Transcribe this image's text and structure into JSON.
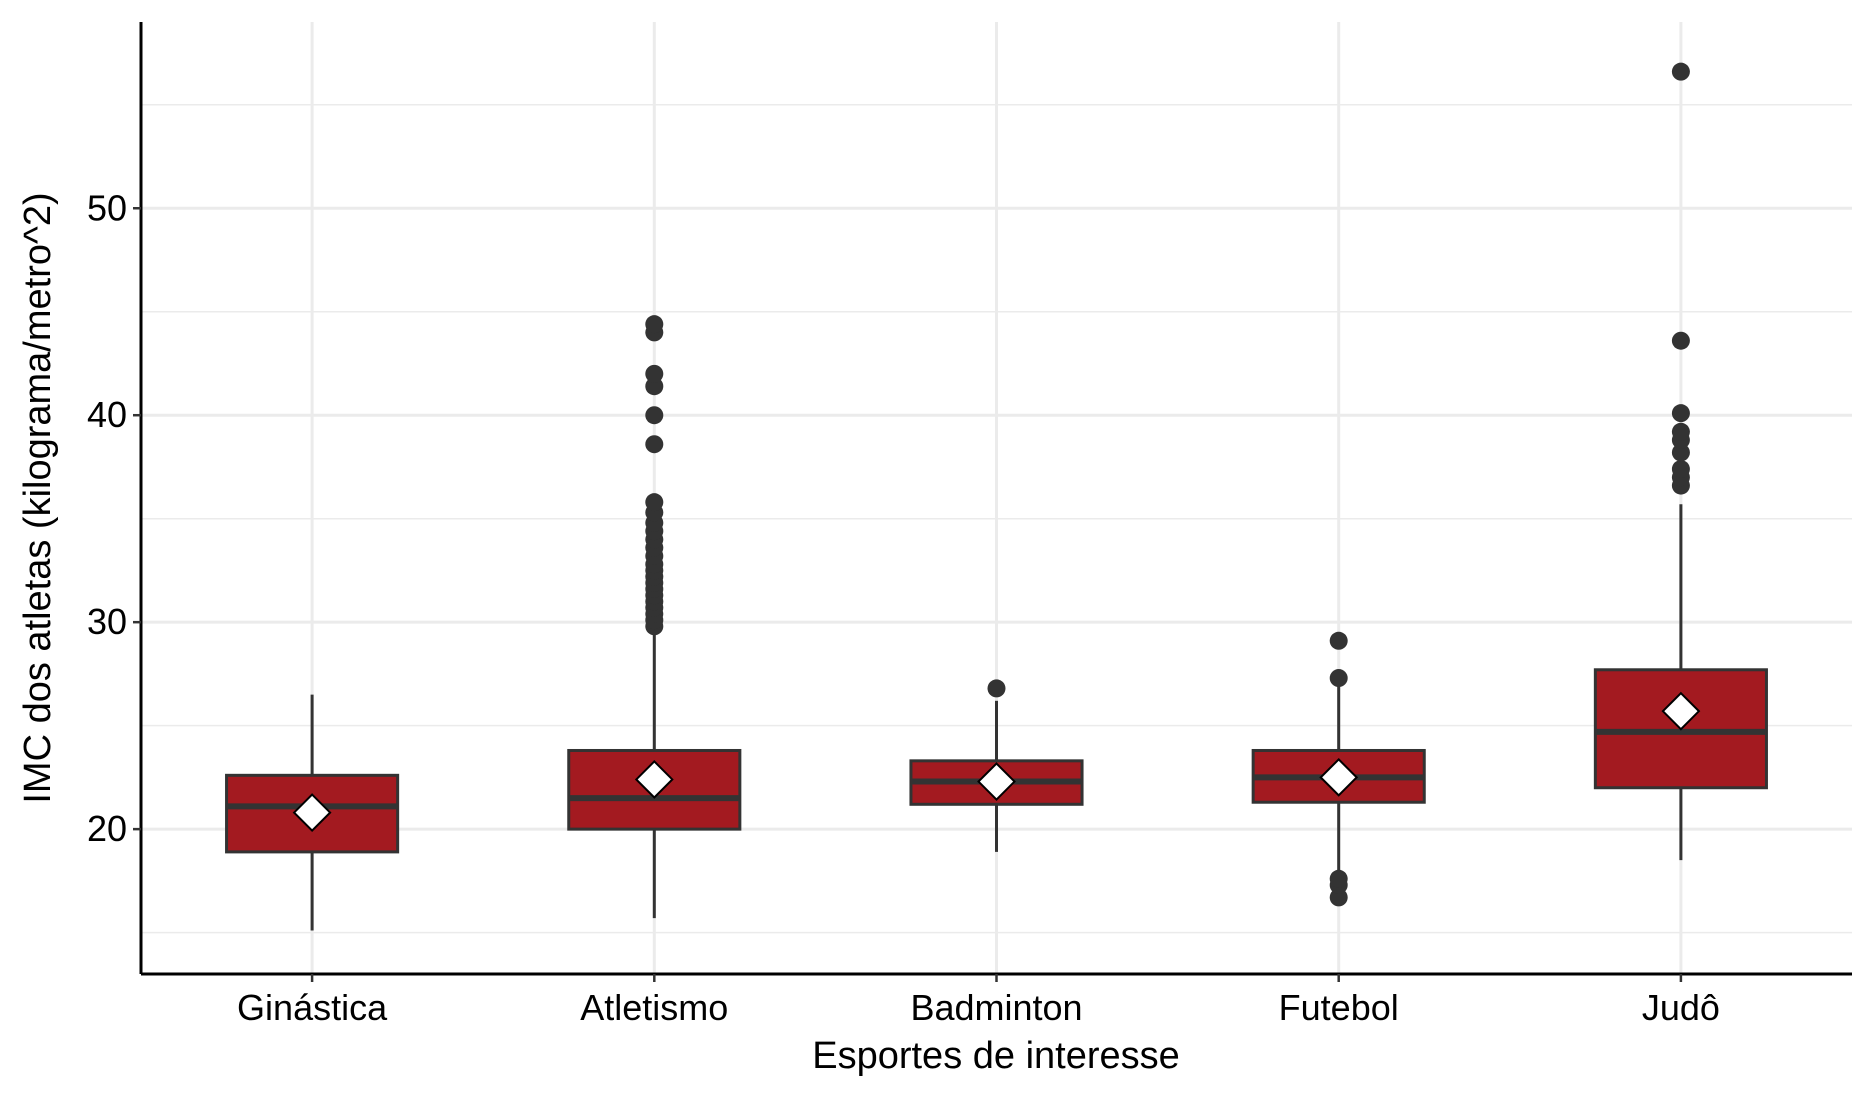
{
  "chart_data": {
    "type": "box",
    "title": "",
    "xlabel": "Esportes de interesse",
    "ylabel": "IMC dos atletas (kilograma/metro^2)",
    "ylim": [
      13.0,
      59.0
    ],
    "y_ticks": [
      20,
      30,
      40,
      50
    ],
    "y_minor_ticks": [
      15,
      25,
      35,
      45,
      55
    ],
    "grid": true,
    "legend": "none",
    "colors": {
      "box_fill": "#A31A20",
      "box_stroke": "#333333",
      "mean_marker": "#ffffff",
      "gridline": "#EBEBEB",
      "axis": "#000000"
    },
    "categories": [
      "Ginástica",
      "Atletismo",
      "Badminton",
      "Futebol",
      "Judô"
    ],
    "boxes": [
      {
        "category": "Ginástica",
        "whisker_low": 15.1,
        "q1": 18.9,
        "median": 21.1,
        "q3": 22.6,
        "whisker_high": 26.5,
        "mean": 20.8,
        "outliers": []
      },
      {
        "category": "Atletismo",
        "whisker_low": 15.7,
        "q1": 20.0,
        "median": 21.5,
        "q3": 23.8,
        "whisker_high": 29.7,
        "mean": 22.4,
        "outliers": [
          29.8,
          30.1,
          30.4,
          30.7,
          31.0,
          31.3,
          31.6,
          31.9,
          32.2,
          32.5,
          32.8,
          33.2,
          33.6,
          34.0,
          34.4,
          34.8,
          35.3,
          35.8,
          38.6,
          40.0,
          41.4,
          42.0,
          44.0,
          44.4
        ]
      },
      {
        "category": "Badminton",
        "whisker_low": 18.9,
        "q1": 21.2,
        "median": 22.3,
        "q3": 23.3,
        "whisker_high": 26.2,
        "mean": 22.3,
        "outliers": [
          26.8
        ]
      },
      {
        "category": "Futebol",
        "whisker_low": 18.0,
        "q1": 21.3,
        "median": 22.5,
        "q3": 23.8,
        "whisker_high": 27.0,
        "mean": 22.5,
        "outliers": [
          16.7,
          17.3,
          17.6,
          27.3,
          29.1
        ]
      },
      {
        "category": "Judô",
        "whisker_low": 18.5,
        "q1": 22.0,
        "median": 24.7,
        "q3": 27.7,
        "whisker_high": 35.7,
        "mean": 25.7,
        "outliers": [
          36.6,
          37.0,
          37.4,
          38.2,
          38.8,
          39.2,
          40.1,
          43.6,
          56.6
        ]
      }
    ]
  }
}
